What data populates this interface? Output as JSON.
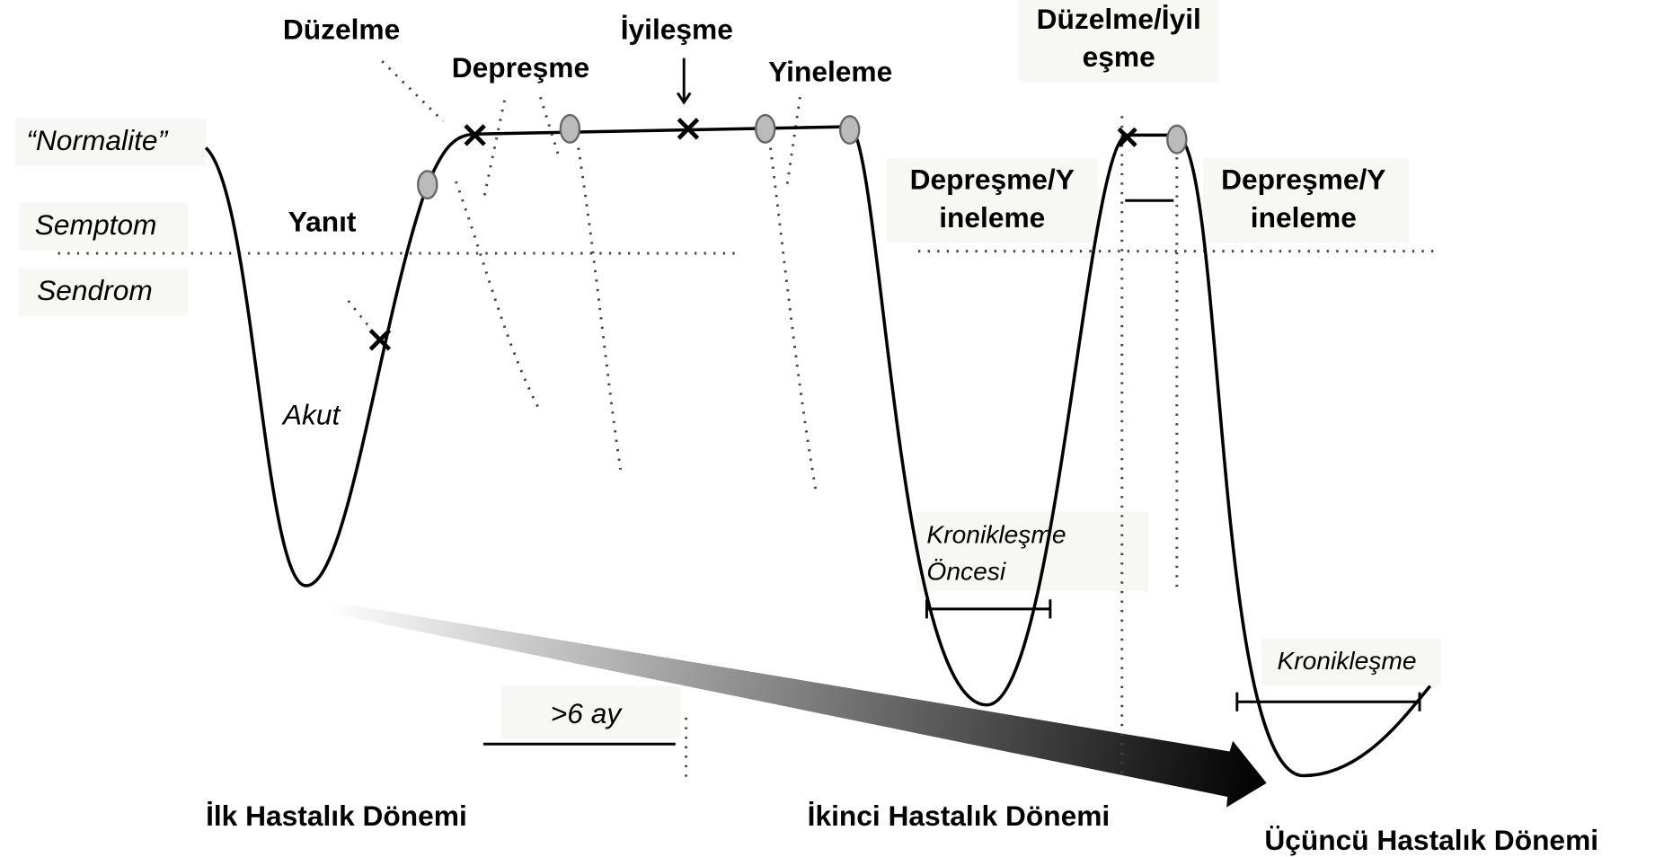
{
  "labels": {
    "duzelme": "Düzelme",
    "depresme": "Depreşme",
    "iyilesme": "İyileşme",
    "yineleme": "Yineleme",
    "duzelme_iyilesme": [
      "Düzelme/İyil",
      "eşme"
    ],
    "normalite": "“Normalite”",
    "semptom": "Semptom",
    "sendrom": "Sendrom",
    "yanit": "Yanıt",
    "akut": "Akut",
    "depresme_yineleme_1": [
      "Depreşme/Y",
      "ineleme"
    ],
    "depresme_yineleme_2": [
      "Depreşme/Y",
      "ineleme"
    ],
    "kroniklesme_oncesi": [
      "Kronikleşme",
      "Öncesi"
    ],
    "kroniklesme": "Kronikleşme",
    "alti_ay": ">6 ay",
    "ilk_donem": "İlk Hastalık Dönemi",
    "ikinci_donem": "İkinci Hastalık Dönemi",
    "ucuncu_donem": "Üçüncü Hastalık Dönemi"
  }
}
